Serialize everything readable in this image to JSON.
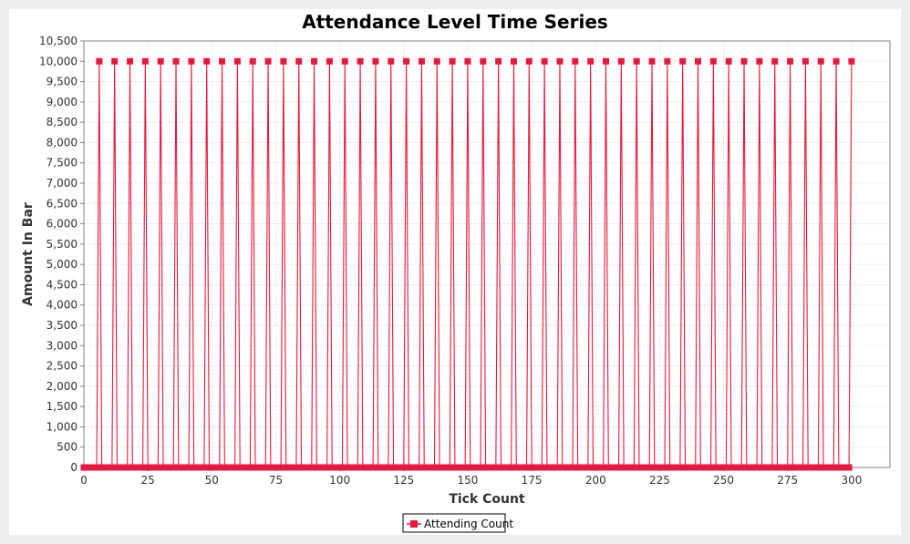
{
  "chart_data": {
    "type": "line",
    "title": "Attendance Level Time Series",
    "xlabel": "Tick Count",
    "ylabel": "Amount In Bar",
    "xlim": [
      0,
      315
    ],
    "ylim": [
      0,
      10500
    ],
    "x_ticks": [
      0,
      25,
      50,
      75,
      100,
      125,
      150,
      175,
      200,
      225,
      250,
      275,
      300
    ],
    "x_tick_labels": [
      "0",
      "25",
      "50",
      "75",
      "100",
      "125",
      "150",
      "175",
      "200",
      "225",
      "250",
      "275",
      "300"
    ],
    "y_ticks": [
      0,
      500,
      1000,
      1500,
      2000,
      2500,
      3000,
      3500,
      4000,
      4500,
      5000,
      5500,
      6000,
      6500,
      7000,
      7500,
      8000,
      8500,
      9000,
      9500,
      10000,
      10500
    ],
    "y_tick_labels": [
      "0",
      "500",
      "1,000",
      "1,500",
      "2,000",
      "2,500",
      "3,000",
      "3,500",
      "4,000",
      "4,500",
      "5,000",
      "5,500",
      "6,000",
      "6,500",
      "7,000",
      "7,500",
      "8,000",
      "8,500",
      "9,000",
      "9,500",
      "10,000",
      "10,500"
    ],
    "grid": true,
    "legend_position": "bottom-center",
    "series": [
      {
        "name": "Attending Count",
        "color": "#e8173e",
        "x_range": [
          0,
          300
        ],
        "zero_value": 0,
        "peak_value": 10000,
        "peak_x": [
          6,
          12,
          18,
          24,
          30,
          36,
          42,
          48,
          54,
          60,
          66,
          72,
          78,
          84,
          90,
          96,
          102,
          108,
          114,
          120,
          126,
          132,
          138,
          144,
          150,
          156,
          162,
          168,
          174,
          180,
          186,
          192,
          198,
          204,
          210,
          216,
          222,
          228,
          234,
          240,
          246,
          252,
          258,
          264,
          270,
          276,
          282,
          288,
          294,
          300
        ]
      }
    ]
  }
}
